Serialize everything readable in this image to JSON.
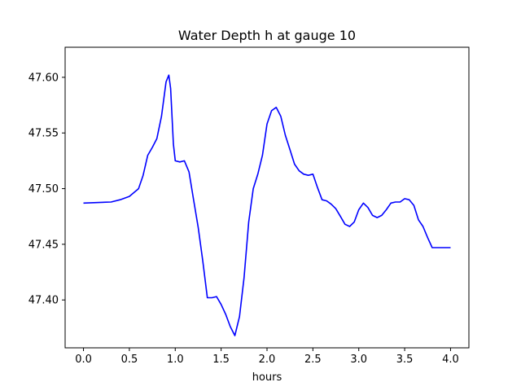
{
  "chart_data": {
    "type": "line",
    "title": "Water Depth h at gauge 10",
    "xlabel": "hours",
    "ylabel": "",
    "xlim": [
      -0.2,
      4.2
    ],
    "ylim": [
      47.357,
      47.627
    ],
    "xticks": [
      0.0,
      0.5,
      1.0,
      1.5,
      2.0,
      2.5,
      3.0,
      3.5,
      4.0
    ],
    "xtick_labels": [
      "0.0",
      "0.5",
      "1.0",
      "1.5",
      "2.0",
      "2.5",
      "3.0",
      "3.5",
      "4.0"
    ],
    "yticks": [
      47.4,
      47.45,
      47.5,
      47.55,
      47.6
    ],
    "ytick_labels": [
      "47.40",
      "47.45",
      "47.50",
      "47.55",
      "47.60"
    ],
    "grid": false,
    "series": [
      {
        "color": "#0000ff",
        "x": [
          0.0,
          0.3,
          0.4,
          0.5,
          0.6,
          0.65,
          0.7,
          0.75,
          0.8,
          0.85,
          0.9,
          0.93,
          0.95,
          0.98,
          1.0,
          1.05,
          1.1,
          1.15,
          1.2,
          1.25,
          1.3,
          1.35,
          1.4,
          1.45,
          1.5,
          1.55,
          1.6,
          1.65,
          1.7,
          1.75,
          1.8,
          1.85,
          1.9,
          1.95,
          2.0,
          2.05,
          2.1,
          2.15,
          2.2,
          2.25,
          2.3,
          2.35,
          2.4,
          2.45,
          2.5,
          2.55,
          2.6,
          2.65,
          2.7,
          2.75,
          2.8,
          2.85,
          2.9,
          2.95,
          3.0,
          3.05,
          3.1,
          3.15,
          3.2,
          3.25,
          3.3,
          3.35,
          3.4,
          3.45,
          3.5,
          3.55,
          3.6,
          3.65,
          3.7,
          3.75,
          3.8,
          3.85,
          3.9,
          3.95,
          4.0
        ],
        "y": [
          47.487,
          47.488,
          47.49,
          47.493,
          47.5,
          47.512,
          47.53,
          47.537,
          47.545,
          47.565,
          47.596,
          47.602,
          47.59,
          47.54,
          47.525,
          47.524,
          47.525,
          47.515,
          47.49,
          47.465,
          47.435,
          47.402,
          47.402,
          47.403,
          47.396,
          47.387,
          47.376,
          47.368,
          47.385,
          47.42,
          47.47,
          47.5,
          47.513,
          47.53,
          47.558,
          47.57,
          47.573,
          47.565,
          47.548,
          47.535,
          47.522,
          47.516,
          47.513,
          47.512,
          47.513,
          47.501,
          47.49,
          47.489,
          47.486,
          47.482,
          47.475,
          47.468,
          47.466,
          47.47,
          47.481,
          47.487,
          47.483,
          47.476,
          47.474,
          47.476,
          47.481,
          47.487,
          47.488,
          47.488,
          47.491,
          47.49,
          47.485,
          47.472,
          47.466,
          47.456,
          47.447,
          47.447,
          47.447,
          47.447,
          47.447
        ]
      }
    ]
  }
}
